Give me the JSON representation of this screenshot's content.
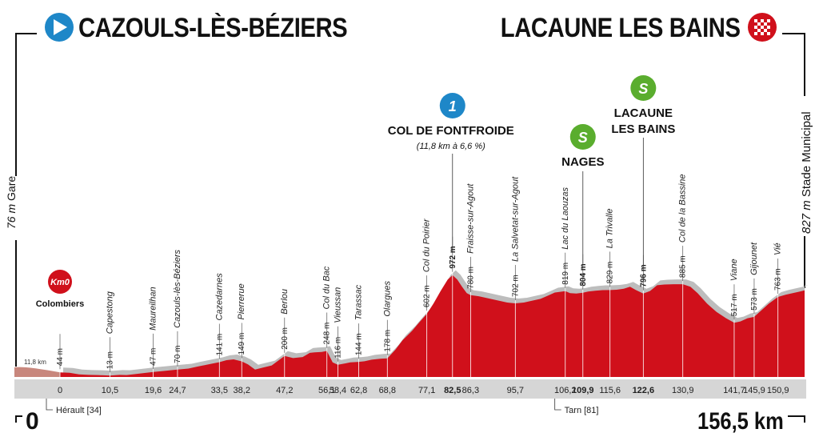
{
  "header": {
    "start": "CAZOULS-LÈS-BÉZIERS",
    "finish": "LACAUNE LES BAINS",
    "distance_start": "0",
    "distance_total": "156,5 km",
    "start_altitude": "76 m",
    "start_label": "Gare",
    "finish_altitude": "827 m",
    "finish_label": "Stade Municipal"
  },
  "colors": {
    "profile": "#d0101b",
    "shadow": "#bdbdbd",
    "axis": "#d6d6d6",
    "sprint": "#5aad2e",
    "kom": "#1e87c8",
    "km0": "#d0101b"
  },
  "chart_data": {
    "type": "area",
    "xlabel": "",
    "ylabel": "",
    "xlim": [
      0,
      156.5
    ],
    "ylim": [
      0,
      1000
    ],
    "grid": false,
    "profile": [
      [
        0,
        44
      ],
      [
        2,
        40
      ],
      [
        4,
        25
      ],
      [
        6,
        20
      ],
      [
        8,
        18
      ],
      [
        10.5,
        13
      ],
      [
        12.5,
        20
      ],
      [
        14,
        18
      ],
      [
        16,
        28
      ],
      [
        19.6,
        47
      ],
      [
        22,
        58
      ],
      [
        24.7,
        70
      ],
      [
        27,
        80
      ],
      [
        29,
        100
      ],
      [
        31,
        118
      ],
      [
        33.5,
        141
      ],
      [
        35,
        160
      ],
      [
        36.5,
        168
      ],
      [
        38.2,
        149
      ],
      [
        39.5,
        120
      ],
      [
        41,
        70
      ],
      [
        42.5,
        88
      ],
      [
        44.5,
        110
      ],
      [
        47.2,
        200
      ],
      [
        49,
        180
      ],
      [
        51,
        190
      ],
      [
        52.5,
        230
      ],
      [
        53.5,
        235
      ],
      [
        55,
        238
      ],
      [
        56.1,
        248
      ],
      [
        57.3,
        140
      ],
      [
        58.4,
        116
      ],
      [
        60,
        130
      ],
      [
        61,
        140
      ],
      [
        62.8,
        144
      ],
      [
        64,
        150
      ],
      [
        65.5,
        165
      ],
      [
        67.5,
        175
      ],
      [
        68.8,
        178
      ],
      [
        70.5,
        260
      ],
      [
        72,
        350
      ],
      [
        74,
        440
      ],
      [
        75.5,
        520
      ],
      [
        77.1,
        602
      ],
      [
        78.5,
        700
      ],
      [
        80,
        820
      ],
      [
        81.5,
        930
      ],
      [
        82.5,
        972
      ],
      [
        83.5,
        930
      ],
      [
        84.5,
        860
      ],
      [
        85.5,
        800
      ],
      [
        86.3,
        780
      ],
      [
        88,
        770
      ],
      [
        90,
        750
      ],
      [
        92,
        730
      ],
      [
        94,
        710
      ],
      [
        95.7,
        702
      ],
      [
        97.5,
        710
      ],
      [
        99,
        725
      ],
      [
        101,
        745
      ],
      [
        102.5,
        775
      ],
      [
        104,
        805
      ],
      [
        106.2,
        819
      ],
      [
        107.2,
        800
      ],
      [
        108.5,
        796
      ],
      [
        109.9,
        804
      ],
      [
        111,
        815
      ],
      [
        112.5,
        822
      ],
      [
        114,
        828
      ],
      [
        115.6,
        829
      ],
      [
        117,
        832
      ],
      [
        118.5,
        842
      ],
      [
        119.8,
        860
      ],
      [
        121,
        830
      ],
      [
        122.6,
        796
      ],
      [
        124,
        820
      ],
      [
        125.5,
        875
      ],
      [
        127,
        882
      ],
      [
        129,
        885
      ],
      [
        130.9,
        885
      ],
      [
        132.5,
        860
      ],
      [
        134,
        800
      ],
      [
        136,
        700
      ],
      [
        138,
        620
      ],
      [
        140,
        560
      ],
      [
        141.7,
        517
      ],
      [
        143,
        530
      ],
      [
        144.5,
        560
      ],
      [
        145.9,
        573
      ],
      [
        147.5,
        640
      ],
      [
        149,
        700
      ],
      [
        150.9,
        763
      ],
      [
        152.5,
        785
      ],
      [
        154,
        800
      ],
      [
        155.5,
        815
      ],
      [
        156.5,
        827
      ]
    ],
    "places": [
      {
        "name": "Colombiers",
        "km": "0",
        "alt": "44 m",
        "x": 0,
        "y": 44
      },
      {
        "name": "Capestong",
        "km": "10,5",
        "alt": "13 m",
        "x": 10.5,
        "y": 13
      },
      {
        "name": "Maureilhan",
        "km": "19,6",
        "alt": "47 m",
        "x": 19.6,
        "y": 47
      },
      {
        "name": "Cazouls-lès-Béziers",
        "km": "24,7",
        "alt": "70 m",
        "x": 24.7,
        "y": 70
      },
      {
        "name": "Cazedarnes",
        "km": "33,5",
        "alt": "141 m",
        "x": 33.5,
        "y": 141
      },
      {
        "name": "Pierrerue",
        "km": "38,2",
        "alt": "149 m",
        "x": 38.2,
        "y": 149
      },
      {
        "name": "Berlou",
        "km": "47,2",
        "alt": "200 m",
        "x": 47.2,
        "y": 200
      },
      {
        "name": "Col du Bac",
        "km": "56,1",
        "alt": "248 m",
        "x": 56.1,
        "y": 248
      },
      {
        "name": "Vieussan",
        "km": "58,4",
        "alt": "116 m",
        "x": 58.4,
        "y": 116
      },
      {
        "name": "Tarassac",
        "km": "62,8",
        "alt": "144 m",
        "x": 62.8,
        "y": 144
      },
      {
        "name": "Olargues",
        "km": "68,8",
        "alt": "178 m",
        "x": 68.8,
        "y": 178
      },
      {
        "name": "Col du Poirier",
        "km": "77,1",
        "alt": "602 m",
        "x": 77.1,
        "y": 602
      },
      {
        "name": "",
        "km": "82,5",
        "alt": "972 m",
        "x": 82.5,
        "y": 972,
        "bold": true
      },
      {
        "name": "Fraisse-sur-Agout",
        "km": "86,3",
        "alt": "780 m",
        "x": 86.3,
        "y": 780
      },
      {
        "name": "La Salvetat-sur-Agout",
        "km": "95,7",
        "alt": "702 m",
        "x": 95.7,
        "y": 702
      },
      {
        "name": "Lac du Laouzas",
        "km": "106,2",
        "alt": "819 m",
        "x": 106.2,
        "y": 819
      },
      {
        "name": "",
        "km": "109,9",
        "alt": "804 m",
        "x": 109.9,
        "y": 804,
        "bold": true
      },
      {
        "name": "La Trivalle",
        "km": "115,6",
        "alt": "829 m",
        "x": 115.6,
        "y": 829
      },
      {
        "name": "",
        "km": "122,6",
        "alt": "796 m",
        "x": 122.6,
        "y": 796,
        "bold": true
      },
      {
        "name": "Col de la Bassine",
        "km": "130,9",
        "alt": "885 m",
        "x": 130.9,
        "y": 885
      },
      {
        "name": "Viane",
        "km": "141,7",
        "alt": "517 m",
        "x": 141.7,
        "y": 517
      },
      {
        "name": "Gijounet",
        "km": "145,9",
        "alt": "573 m",
        "x": 145.9,
        "y": 573
      },
      {
        "name": "Vié",
        "km": "150,9",
        "alt": "763 m",
        "x": 150.9,
        "y": 763
      }
    ],
    "annotations": {
      "neutral_km": "11,8 km",
      "km0_badge": "Km0",
      "kom_badge": "1",
      "kom_name": "COL DE FONTFROIDE",
      "kom_detail": "(11,8 km à 6,6 %)",
      "kom_km": 82.5,
      "sprint_badge": "S",
      "sprint1_name": "NAGES",
      "sprint1_km": 109.9,
      "sprint2_name_line1": "LACAUNE",
      "sprint2_name_line2": "LES BAINS",
      "sprint2_km": 122.6,
      "dept_left": "Hérault [34]",
      "dept_right": "Tarn [81]",
      "dept_right_km": 104
    }
  }
}
